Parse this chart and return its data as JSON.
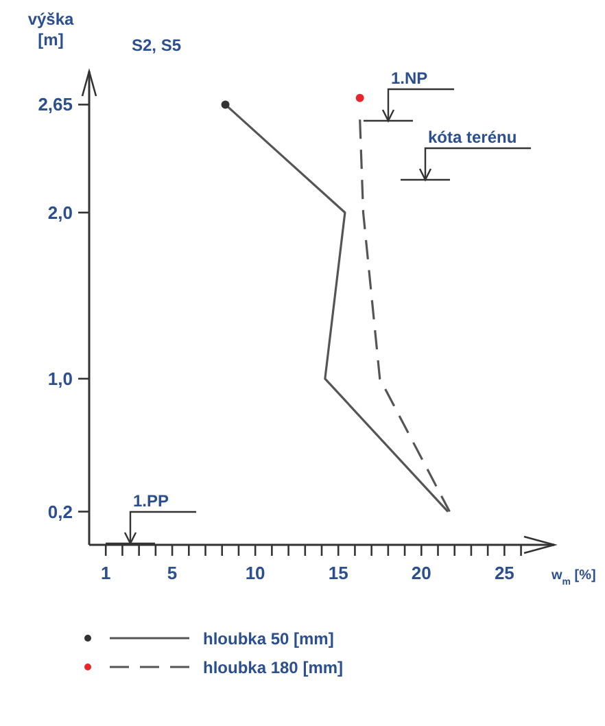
{
  "chart_data": {
    "type": "line",
    "title": "S2, S5",
    "xlabel": "w$_{m}$ [%]",
    "ylabel": "výška [m]",
    "xlim": [
      0,
      28
    ],
    "ylim": [
      0,
      2.85
    ],
    "xticks": [
      1,
      {
        "value": 2,
        "label": null
      },
      {
        "value": 3,
        "label": null
      },
      {
        "value": 4,
        "label": null
      },
      5,
      {
        "value": 6,
        "label": null
      },
      {
        "value": 7,
        "label": null
      },
      {
        "value": 8,
        "label": null
      },
      {
        "value": 9,
        "label": null
      },
      10,
      {
        "value": 11,
        "label": null
      },
      {
        "value": 12,
        "label": null
      },
      {
        "value": 13,
        "label": null
      },
      {
        "value": 14,
        "label": null
      },
      15,
      {
        "value": 16,
        "label": null
      },
      {
        "value": 17,
        "label": null
      },
      {
        "value": 18,
        "label": null
      },
      {
        "value": 19,
        "label": null
      },
      20,
      {
        "value": 21,
        "label": null
      },
      {
        "value": 22,
        "label": null
      },
      {
        "value": 23,
        "label": null
      },
      {
        "value": 24,
        "label": null
      },
      25,
      {
        "value": 26,
        "label": null
      }
    ],
    "yticks": [
      {
        "value": 0.2,
        "label": "0,2"
      },
      {
        "value": 1,
        "label": "1,0"
      },
      {
        "value": 2,
        "label": "2,0"
      },
      {
        "value": 2.65,
        "label": "2,65"
      }
    ],
    "grid": false,
    "legend": "bottom",
    "series": [
      {
        "name": "hloubka 50 [mm]",
        "color": "#555555",
        "line_style": "solid",
        "marker": "none",
        "x": [
          8.2,
          15.4,
          14.2,
          21.6
        ],
        "values": [
          2.65,
          2.0,
          1.0,
          0.2
        ]
      },
      {
        "name": "hloubka 180 [mm]",
        "color": "#555555",
        "line_style": "dashed",
        "marker": "none",
        "x": [
          16.3,
          16.5,
          17.5,
          21.7
        ],
        "values": [
          2.56,
          2.0,
          1.0,
          0.2
        ]
      },
      {
        "type": "scatter",
        "color": "#333333",
        "marker": "circle",
        "x": [
          8.2
        ],
        "values": [
          2.65
        ]
      },
      {
        "type": "scatter",
        "color": "#e8262a",
        "marker": "circle",
        "x": [
          16.3
        ],
        "values": [
          2.69
        ]
      }
    ],
    "annotations": [
      "1.NP",
      "kóta terénu",
      "1.PP"
    ]
  }
}
